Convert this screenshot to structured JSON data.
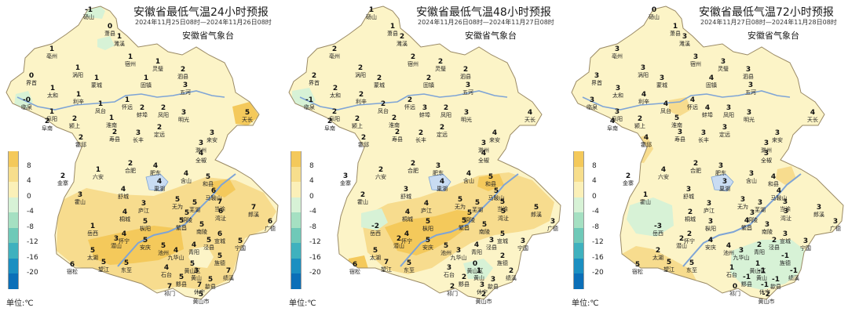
{
  "legend": {
    "labels": [
      "8",
      "4",
      "0",
      "-4",
      "-8",
      "-12",
      "-16",
      "-20"
    ],
    "colors": [
      "#f4c95b",
      "#f7de8c",
      "#fbf0b8",
      "#d7f2d6",
      "#a5e0c2",
      "#6fc9b8",
      "#3fb1be",
      "#1b8fc1",
      "#0b6fb8"
    ],
    "unit": "单位:℃"
  },
  "colors": {
    "base": "#fcf4c7",
    "warm": "#f7dc8e",
    "hot": "#f4c95b",
    "cool": "#d7f2d6",
    "border": "#9a8a65",
    "river": "#7ea4d6"
  },
  "panels": [
    {
      "title": "安徽省最低气温24小时预报",
      "subtitle": "2024年11月25日08时—2024年11月26日08时",
      "org": "安徽省气象台",
      "stations": [
        {
          "name": "砀山",
          "value": "-1"
        },
        {
          "name": "萧县",
          "value": "0"
        },
        {
          "name": "濉溪",
          "value": "1"
        },
        {
          "name": "亳州",
          "value": "1"
        },
        {
          "name": "宿州",
          "value": "1"
        },
        {
          "name": "灵璧",
          "value": "1"
        },
        {
          "name": "泗县",
          "value": "2"
        },
        {
          "name": "涡阳",
          "value": "1"
        },
        {
          "name": "蒙城",
          "value": "1"
        },
        {
          "name": "固镇",
          "value": "1"
        },
        {
          "name": "五河",
          "value": "3"
        },
        {
          "name": "界首",
          "value": "0"
        },
        {
          "name": "太和",
          "value": "1"
        },
        {
          "name": "利辛",
          "value": "1"
        },
        {
          "name": "临泉",
          "value": "-0"
        },
        {
          "name": "阜阳",
          "value": "1"
        },
        {
          "name": "阜南",
          "value": "2"
        },
        {
          "name": "颍上",
          "value": "2"
        },
        {
          "name": "淮南",
          "value": "1"
        },
        {
          "name": "凤台",
          "value": "1"
        },
        {
          "name": "怀远",
          "value": "1"
        },
        {
          "name": "蚌埠",
          "value": "2"
        },
        {
          "name": "凤阳",
          "value": "2"
        },
        {
          "name": "明光",
          "value": "3"
        },
        {
          "name": "定远",
          "value": "2"
        },
        {
          "name": "天长",
          "value": "5"
        },
        {
          "name": "寿县",
          "value": "2"
        },
        {
          "name": "长丰",
          "value": "3"
        },
        {
          "name": "来安",
          "value": "3"
        },
        {
          "name": "滁州",
          "value": "3"
        },
        {
          "name": "全椒",
          "value": "4"
        },
        {
          "name": "霍邱",
          "value": "2"
        },
        {
          "name": "六安",
          "value": "1"
        },
        {
          "name": "金寨",
          "value": "2"
        },
        {
          "name": "霍山",
          "value": "3"
        },
        {
          "name": "舒城",
          "value": "4"
        },
        {
          "name": "合肥",
          "value": "2"
        },
        {
          "name": "肥东",
          "value": "4"
        },
        {
          "name": "巢湖",
          "value": "4"
        },
        {
          "name": "庐江",
          "value": "3"
        },
        {
          "name": "含山",
          "value": "4"
        },
        {
          "name": "和县",
          "value": "5"
        },
        {
          "name": "马鞍山",
          "value": "6"
        },
        {
          "name": "当涂",
          "value": "7"
        },
        {
          "name": "无为",
          "value": "5"
        },
        {
          "name": "桐城",
          "value": "4"
        },
        {
          "name": "枞阳",
          "value": "5"
        },
        {
          "name": "岳西",
          "value": "1"
        },
        {
          "name": "潜山",
          "value": "3"
        },
        {
          "name": "太湖",
          "value": "5"
        },
        {
          "name": "怀宁",
          "value": "4"
        },
        {
          "name": "安庆",
          "value": "5"
        },
        {
          "name": "宿松",
          "value": "6"
        },
        {
          "name": "望江",
          "value": "5"
        },
        {
          "name": "东至",
          "value": "5"
        },
        {
          "name": "池州",
          "value": "5"
        },
        {
          "name": "青阳",
          "value": "4"
        },
        {
          "name": "铜陵",
          "value": "5"
        },
        {
          "name": "芜湖",
          "value": "5"
        },
        {
          "name": "繁昌",
          "value": "5"
        },
        {
          "name": "南陵",
          "value": "5"
        },
        {
          "name": "湾沚",
          "value": "6"
        },
        {
          "name": "宣城",
          "value": "6"
        },
        {
          "name": "郎溪",
          "value": "7"
        },
        {
          "name": "广德",
          "value": "6"
        },
        {
          "name": "宁国",
          "value": "5"
        },
        {
          "name": "泾县",
          "value": "5"
        },
        {
          "name": "旌德",
          "value": "5"
        },
        {
          "name": "绩溪",
          "value": "7"
        },
        {
          "name": "九华山",
          "value": "4"
        },
        {
          "name": "黄山区",
          "value": "5"
        },
        {
          "name": "石台",
          "value": "4"
        },
        {
          "name": "祁门",
          "value": "7"
        },
        {
          "name": "黟县",
          "value": "5"
        },
        {
          "name": "歙县",
          "value": "5"
        },
        {
          "name": "休宁",
          "value": "7"
        },
        {
          "name": "黄山市",
          "value": "5"
        },
        {
          "name": "黄山",
          "value": "3"
        }
      ]
    },
    {
      "title": "安徽省最低气温48小时预报",
      "subtitle": "2024年11月26日08时—2024年11月27日08时",
      "org": "安徽省气象台",
      "stations": [
        {
          "name": "砀山",
          "value": "1"
        },
        {
          "name": "萧县",
          "value": "1"
        },
        {
          "name": "濉溪",
          "value": "2"
        },
        {
          "name": "亳州",
          "value": "2"
        },
        {
          "name": "宿州",
          "value": "2"
        },
        {
          "name": "灵璧",
          "value": "2"
        },
        {
          "name": "泗县",
          "value": "2"
        },
        {
          "name": "涡阳",
          "value": "2"
        },
        {
          "name": "蒙城",
          "value": "2"
        },
        {
          "name": "固镇",
          "value": "2"
        },
        {
          "name": "五河",
          "value": "3"
        },
        {
          "name": "界首",
          "value": "2"
        },
        {
          "name": "太和",
          "value": "2"
        },
        {
          "name": "利辛",
          "value": "2"
        },
        {
          "name": "临泉",
          "value": "-1"
        },
        {
          "name": "阜阳",
          "value": "2"
        },
        {
          "name": "阜南",
          "value": "2"
        },
        {
          "name": "颍上",
          "value": "2"
        },
        {
          "name": "淮南",
          "value": "2"
        },
        {
          "name": "凤台",
          "value": "2"
        },
        {
          "name": "怀远",
          "value": "2"
        },
        {
          "name": "蚌埠",
          "value": "3"
        },
        {
          "name": "凤阳",
          "value": "2"
        },
        {
          "name": "明光",
          "value": "3"
        },
        {
          "name": "定远",
          "value": "2"
        },
        {
          "name": "天长",
          "value": "4"
        },
        {
          "name": "寿县",
          "value": "2"
        },
        {
          "name": "长丰",
          "value": "2"
        },
        {
          "name": "来安",
          "value": "4"
        },
        {
          "name": "滁州",
          "value": "3"
        },
        {
          "name": "全椒",
          "value": "4"
        },
        {
          "name": "霍邱",
          "value": "2"
        },
        {
          "name": "六安",
          "value": "2"
        },
        {
          "name": "金寨",
          "value": "3"
        },
        {
          "name": "霍山",
          "value": "2"
        },
        {
          "name": "舒城",
          "value": "3"
        },
        {
          "name": "合肥",
          "value": "2"
        },
        {
          "name": "肥东",
          "value": "3"
        },
        {
          "name": "巢湖",
          "value": "4"
        },
        {
          "name": "庐江",
          "value": "4"
        },
        {
          "name": "含山",
          "value": "4"
        },
        {
          "name": "和县",
          "value": "5"
        },
        {
          "name": "马鞍山",
          "value": "5"
        },
        {
          "name": "当涂",
          "value": "5"
        },
        {
          "name": "无为",
          "value": "5"
        },
        {
          "name": "桐城",
          "value": "4"
        },
        {
          "name": "枞阳",
          "value": "5"
        },
        {
          "name": "岳西",
          "value": "-2"
        },
        {
          "name": "潜山",
          "value": "2"
        },
        {
          "name": "太湖",
          "value": "5"
        },
        {
          "name": "怀宁",
          "value": "4"
        },
        {
          "name": "安庆",
          "value": "5"
        },
        {
          "name": "宿松",
          "value": "6"
        },
        {
          "name": "望江",
          "value": "7"
        },
        {
          "name": "东至",
          "value": "5"
        },
        {
          "name": "池州",
          "value": "5"
        },
        {
          "name": "青阳",
          "value": "4"
        },
        {
          "name": "铜陵",
          "value": "5"
        },
        {
          "name": "芜湖",
          "value": "5"
        },
        {
          "name": "繁昌",
          "value": "5"
        },
        {
          "name": "南陵",
          "value": "5"
        },
        {
          "name": "湾沚",
          "value": "5"
        },
        {
          "name": "宣城",
          "value": "5"
        },
        {
          "name": "郎溪",
          "value": "5"
        },
        {
          "name": "广德",
          "value": "3"
        },
        {
          "name": "宁国",
          "value": "3"
        },
        {
          "name": "泾县",
          "value": "3"
        },
        {
          "name": "旌德",
          "value": "2"
        },
        {
          "name": "绩溪",
          "value": "2"
        },
        {
          "name": "九华山",
          "value": "3"
        },
        {
          "name": "黄山区",
          "value": "0"
        },
        {
          "name": "石台",
          "value": "3"
        },
        {
          "name": "祁门",
          "value": "2"
        },
        {
          "name": "黟县",
          "value": "2"
        },
        {
          "name": "歙县",
          "value": "3"
        },
        {
          "name": "休宁",
          "value": "3"
        },
        {
          "name": "黄山市",
          "value": "2"
        },
        {
          "name": "黄山",
          "value": "1"
        }
      ]
    },
    {
      "title": "安徽省最低气温72小时预报",
      "subtitle": "2024年11月27日08时—2024年11月28日08时",
      "org": "安徽省气象台",
      "stations": [
        {
          "name": "砀山",
          "value": "0"
        },
        {
          "name": "萧县",
          "value": "1"
        },
        {
          "name": "濉溪",
          "value": "3"
        },
        {
          "name": "亳州",
          "value": "3"
        },
        {
          "name": "宿州",
          "value": "3"
        },
        {
          "name": "灵璧",
          "value": "3"
        },
        {
          "name": "泗县",
          "value": "3"
        },
        {
          "name": "涡阳",
          "value": "3"
        },
        {
          "name": "蒙城",
          "value": "3"
        },
        {
          "name": "固镇",
          "value": "4"
        },
        {
          "name": "五河",
          "value": "3"
        },
        {
          "name": "界首",
          "value": "3"
        },
        {
          "name": "太和",
          "value": "3"
        },
        {
          "name": "利辛",
          "value": "4"
        },
        {
          "name": "临泉",
          "value": "3"
        },
        {
          "name": "阜阳",
          "value": "3"
        },
        {
          "name": "阜南",
          "value": "4"
        },
        {
          "name": "颍上",
          "value": "2"
        },
        {
          "name": "淮南",
          "value": "5"
        },
        {
          "name": "凤台",
          "value": "4"
        },
        {
          "name": "怀远",
          "value": "4"
        },
        {
          "name": "蚌埠",
          "value": "4"
        },
        {
          "name": "凤阳",
          "value": "3"
        },
        {
          "name": "明光",
          "value": "3"
        },
        {
          "name": "定远",
          "value": "3"
        },
        {
          "name": "天长",
          "value": "4"
        },
        {
          "name": "寿县",
          "value": "3"
        },
        {
          "name": "长丰",
          "value": "3"
        },
        {
          "name": "来安",
          "value": "3"
        },
        {
          "name": "滁州",
          "value": "3"
        },
        {
          "name": "全椒",
          "value": "3"
        },
        {
          "name": "霍邱",
          "value": "4"
        },
        {
          "name": "六安",
          "value": "4"
        },
        {
          "name": "金寨",
          "value": "2"
        },
        {
          "name": "霍山",
          "value": "1"
        },
        {
          "name": "舒城",
          "value": "3"
        },
        {
          "name": "合肥",
          "value": "2"
        },
        {
          "name": "肥东",
          "value": "3"
        },
        {
          "name": "巢湖",
          "value": "3"
        },
        {
          "name": "庐江",
          "value": "3"
        },
        {
          "name": "含山",
          "value": "3"
        },
        {
          "name": "和县",
          "value": "4"
        },
        {
          "name": "马鞍山",
          "value": "4"
        },
        {
          "name": "当涂",
          "value": "3"
        },
        {
          "name": "无为",
          "value": "3"
        },
        {
          "name": "桐城",
          "value": "2"
        },
        {
          "name": "枞阳",
          "value": "3"
        },
        {
          "name": "岳西",
          "value": "-3"
        },
        {
          "name": "潜山",
          "value": "2"
        },
        {
          "name": "太湖",
          "value": "2"
        },
        {
          "name": "怀宁",
          "value": "2"
        },
        {
          "name": "安庆",
          "value": "4"
        },
        {
          "name": "宿松",
          "value": "5"
        },
        {
          "name": "望江",
          "value": "5"
        },
        {
          "name": "东至",
          "value": "5"
        },
        {
          "name": "池州",
          "value": "4"
        },
        {
          "name": "青阳",
          "value": "2"
        },
        {
          "name": "铜陵",
          "value": "3"
        },
        {
          "name": "芜湖",
          "value": "3"
        },
        {
          "name": "繁昌",
          "value": "4"
        },
        {
          "name": "南陵",
          "value": "3"
        },
        {
          "name": "湾沚",
          "value": "3"
        },
        {
          "name": "宣城",
          "value": "3"
        },
        {
          "name": "郎溪",
          "value": "3"
        },
        {
          "name": "广德",
          "value": "3"
        },
        {
          "name": "宁国",
          "value": "3"
        },
        {
          "name": "泾县",
          "value": "2"
        },
        {
          "name": "旌德",
          "value": "-1"
        },
        {
          "name": "绩溪",
          "value": "-1"
        },
        {
          "name": "九华山",
          "value": "3"
        },
        {
          "name": "黄山区",
          "value": "1"
        },
        {
          "name": "石台",
          "value": "1"
        },
        {
          "name": "祁门",
          "value": "0"
        },
        {
          "name": "黟县",
          "value": "-1"
        },
        {
          "name": "歙县",
          "value": "-1"
        },
        {
          "name": "休宁",
          "value": "-1"
        },
        {
          "name": "黄山市",
          "value": "-2"
        },
        {
          "name": "黄山",
          "value": "-1"
        }
      ]
    }
  ]
}
